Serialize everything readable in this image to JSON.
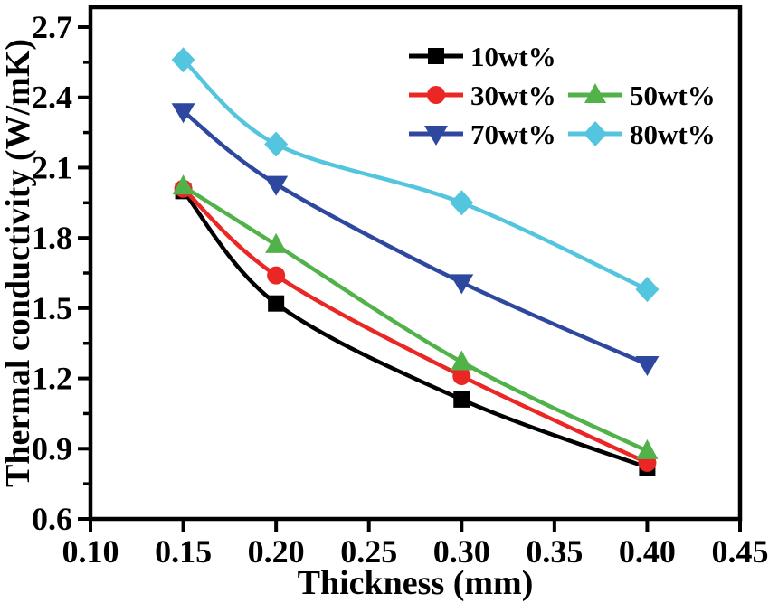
{
  "figure": {
    "background": "#ffffff",
    "text_color": "#000000"
  },
  "chart_data": {
    "type": "line",
    "title": "",
    "xlabel": "Thickness (mm)",
    "ylabel": "Thermal conductivity (W/mK)",
    "xlim": [
      0.1,
      0.45
    ],
    "ylim": [
      0.6,
      2.785
    ],
    "grid": false,
    "x_ticks": [
      0.1,
      0.15,
      0.2,
      0.25,
      0.3,
      0.35,
      0.4,
      0.45
    ],
    "x_tick_labels": [
      "0.10",
      "0.15",
      "0.20",
      "0.25",
      "0.30",
      "0.35",
      "0.40",
      "0.45"
    ],
    "y_ticks": [
      0.6,
      0.9,
      1.2,
      1.5,
      1.8,
      2.1,
      2.4,
      2.7
    ],
    "y_tick_labels": [
      "0.6",
      "0.9",
      "1.2",
      "1.5",
      "1.8",
      "2.1",
      "2.4",
      "2.7"
    ],
    "y_minor_ticks": [
      0.75,
      1.05,
      1.35,
      1.65,
      1.95,
      2.25,
      2.55
    ],
    "x": [
      0.15,
      0.2,
      0.3,
      0.4
    ],
    "series": [
      {
        "name": "10wt%",
        "color": "#000000",
        "marker": "square",
        "values": [
          2.0,
          1.52,
          1.11,
          0.82
        ]
      },
      {
        "name": "30wt%",
        "color": "#ea2724",
        "marker": "circle",
        "values": [
          2.01,
          1.64,
          1.21,
          0.84
        ]
      },
      {
        "name": "50wt%",
        "color": "#52b24a",
        "marker": "triangle-up",
        "values": [
          2.02,
          1.77,
          1.27,
          0.89
        ]
      },
      {
        "name": "70wt%",
        "color": "#2e479f",
        "marker": "triangle-down",
        "values": [
          2.34,
          2.03,
          1.61,
          1.26
        ]
      },
      {
        "name": "80wt%",
        "color": "#54c5de",
        "marker": "diamond",
        "values": [
          2.56,
          2.2,
          1.95,
          1.58
        ]
      }
    ],
    "legend": {
      "position": "top-right-inside",
      "rows": [
        [
          "10wt%"
        ],
        [
          "30wt%",
          "50wt%"
        ],
        [
          "70wt%",
          "80wt%"
        ]
      ]
    }
  }
}
